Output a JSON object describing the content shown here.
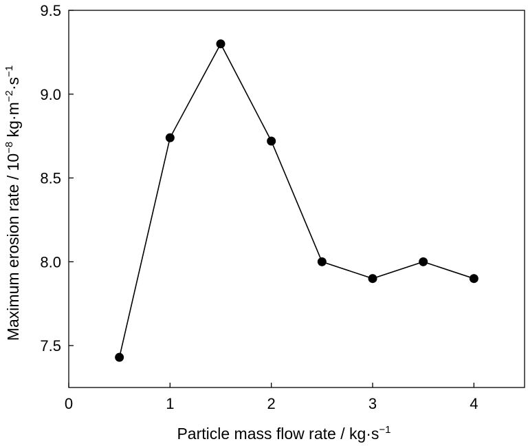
{
  "chart_data": {
    "type": "line",
    "title": "",
    "xlabel": {
      "main": "Particle mass flow rate / kg·s",
      "sup": "−1"
    },
    "ylabel": {
      "p1": "Maximum erosion rate / 10",
      "sup1": "−8",
      "p2": " kg·m",
      "sup2": "−2",
      "p3": "·s",
      "sup3": "−1"
    },
    "x": [
      0.5,
      1.0,
      1.5,
      2.0,
      2.5,
      3.0,
      3.5,
      4.0
    ],
    "series": [
      {
        "values": [
          7.43,
          8.74,
          9.3,
          8.72,
          8.0,
          7.9,
          8.0,
          7.9
        ]
      }
    ],
    "xlim": [
      0,
      4.5
    ],
    "ylim": [
      7.25,
      9.5
    ],
    "xticks": [
      0,
      1,
      2,
      3,
      4
    ],
    "xtick_labels": [
      "0",
      "1",
      "2",
      "3",
      "4"
    ],
    "yticks": [
      7.5,
      8.0,
      8.5,
      9.0,
      9.5
    ],
    "ytick_labels": [
      "7.5",
      "8.0",
      "8.5",
      "9.0",
      "9.5"
    ],
    "grid": false,
    "legend": "none",
    "line_color": "#000000",
    "marker": "filled-circle"
  }
}
